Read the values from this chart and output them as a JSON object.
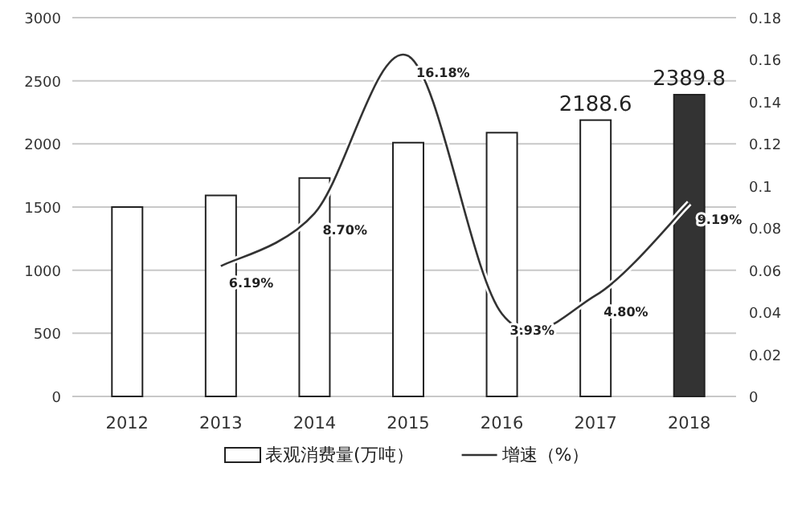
{
  "chart_data": {
    "type": "bar",
    "categories": [
      "2012",
      "2013",
      "2014",
      "2015",
      "2016",
      "2017",
      "2018"
    ],
    "series": [
      {
        "name": "表观消费量(万吨）",
        "colors": [
          "#ffffff",
          "#ffffff",
          "#ffffff",
          "#ffffff",
          "#ffffff",
          "#ffffff",
          "#333333"
        ],
        "values": [
          1500,
          1592,
          1730,
          2010,
          2089,
          2188.6,
          2389.8
        ],
        "value_labels": [
          null,
          null,
          null,
          null,
          null,
          "2188.6",
          "2389.8"
        ]
      },
      {
        "name": "增速（%）",
        "type": "line",
        "axis": "y2",
        "color": "#333333",
        "values": [
          null,
          0.0619,
          0.087,
          0.1618,
          0.0393,
          0.048,
          0.0919
        ],
        "value_labels": [
          null,
          "6.19%",
          "8.70%",
          "16.18%",
          "3.93%",
          "4.80%",
          "9.19%"
        ]
      }
    ],
    "ylim": [
      0,
      3000
    ],
    "yticks": [
      0,
      500,
      1000,
      1500,
      2000,
      2500,
      3000
    ],
    "y2lim": [
      0,
      0.18
    ],
    "y2ticks": [
      0,
      0.02,
      0.04,
      0.06,
      0.08,
      0.1,
      0.12,
      0.14,
      0.16,
      0.18
    ],
    "grid": "y",
    "legend": "bottom"
  }
}
